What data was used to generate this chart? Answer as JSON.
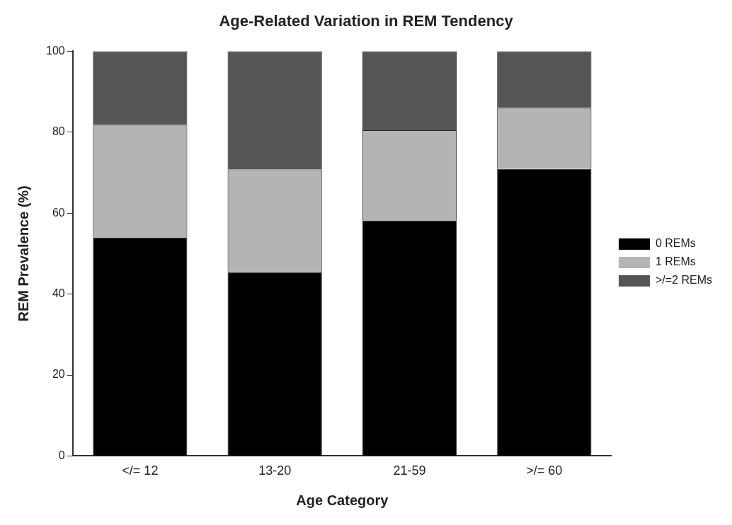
{
  "chart_data": {
    "type": "bar",
    "title": "Age-Related Variation in REM Tendency",
    "xlabel": "Age Category",
    "ylabel": "REM Prevalence (%)",
    "categories": [
      "</= 12",
      "13-20",
      "21-59",
      ">/= 60"
    ],
    "stacked": true,
    "series": [
      {
        "name": "0 REMs",
        "color": "#000000",
        "values": [
          54.0,
          45.4,
          58.2,
          70.9
        ]
      },
      {
        "name": "1 REMs",
        "color": "#b4b4b4",
        "values": [
          27.8,
          25.4,
          22.3,
          15.1
        ]
      },
      {
        "name": ">/=2 REMs",
        "color": "#555555",
        "values": [
          18.2,
          29.2,
          19.5,
          14.0
        ]
      }
    ],
    "ylim": [
      0,
      100
    ],
    "yticks": [
      0,
      20,
      40,
      60,
      80,
      100
    ],
    "grid": false,
    "legend": "right"
  }
}
